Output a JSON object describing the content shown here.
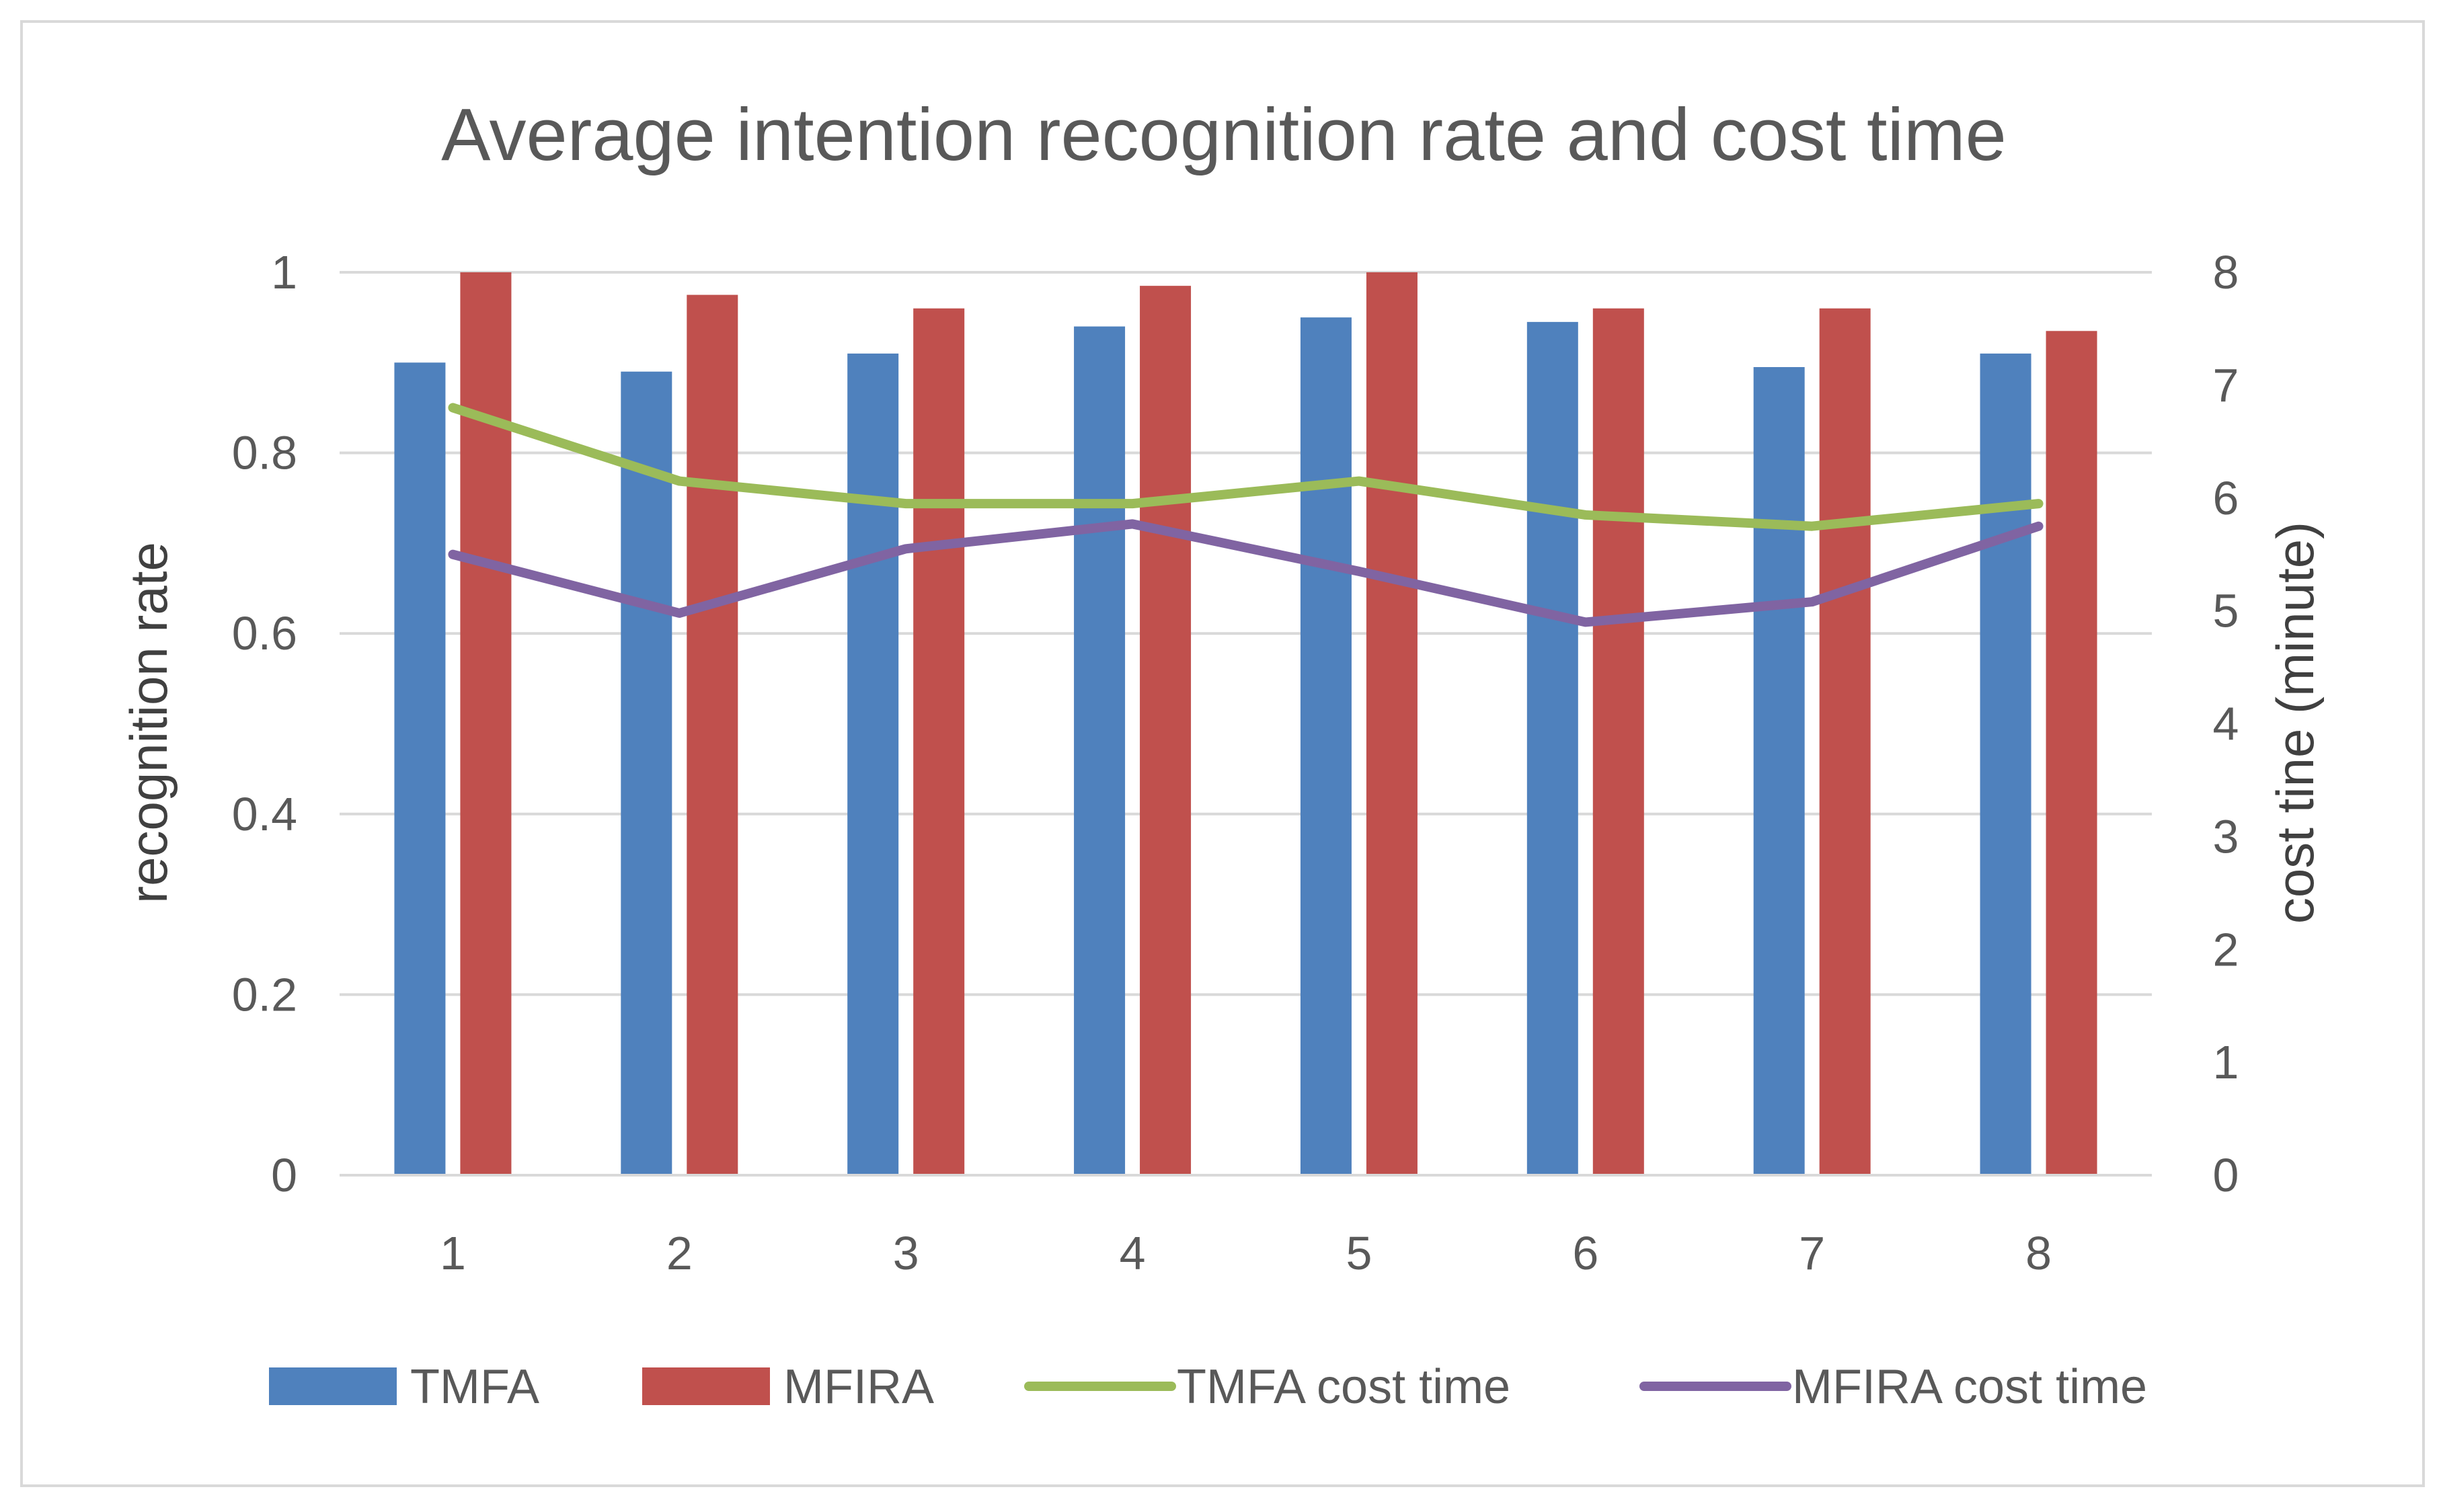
{
  "chart_data": {
    "type": "bar",
    "title": "Average intention recognition rate and cost time",
    "xlabel": "",
    "ylabel": "recognition rate",
    "y2label": "cost tine (minute)",
    "categories": [
      "1",
      "2",
      "3",
      "4",
      "5",
      "6",
      "7",
      "8"
    ],
    "ylim": [
      0,
      1
    ],
    "y_ticks": [
      "0",
      "0.2",
      "0.4",
      "0.6",
      "0.8",
      "1"
    ],
    "y2lim": [
      0,
      8
    ],
    "y2_ticks": [
      "0",
      "1",
      "2",
      "3",
      "4",
      "5",
      "6",
      "7",
      "8"
    ],
    "grid": true,
    "legend_position": "bottom",
    "series": [
      {
        "name": "TMFA",
        "kind": "bar",
        "axis": "left",
        "color": "#4F81BD",
        "values": [
          0.9,
          0.89,
          0.91,
          0.94,
          0.95,
          0.945,
          0.895,
          0.91
        ]
      },
      {
        "name": "MFIRA",
        "kind": "bar",
        "axis": "left",
        "color": "#C0504D",
        "values": [
          1.0,
          0.975,
          0.96,
          0.985,
          1.0,
          0.96,
          0.96,
          0.935
        ]
      },
      {
        "name": "TMFA cost time",
        "kind": "line",
        "axis": "right",
        "color": "#9BBB59",
        "values": [
          6.8,
          6.15,
          5.95,
          5.95,
          6.15,
          5.85,
          5.75,
          5.95
        ]
      },
      {
        "name": "MFIRA cost time",
        "kind": "line",
        "axis": "right",
        "color": "#8064A2",
        "values": [
          5.5,
          4.98,
          5.55,
          5.77,
          5.35,
          4.9,
          5.08,
          5.75
        ]
      }
    ]
  }
}
